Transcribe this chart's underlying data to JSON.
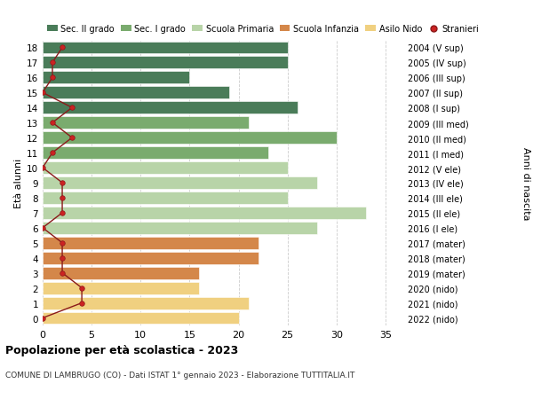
{
  "ages": [
    18,
    17,
    16,
    15,
    14,
    13,
    12,
    11,
    10,
    9,
    8,
    7,
    6,
    5,
    4,
    3,
    2,
    1,
    0
  ],
  "right_labels": [
    "2004 (V sup)",
    "2005 (IV sup)",
    "2006 (III sup)",
    "2007 (II sup)",
    "2008 (I sup)",
    "2009 (III med)",
    "2010 (II med)",
    "2011 (I med)",
    "2012 (V ele)",
    "2013 (IV ele)",
    "2014 (III ele)",
    "2015 (II ele)",
    "2016 (I ele)",
    "2017 (mater)",
    "2018 (mater)",
    "2019 (mater)",
    "2020 (nido)",
    "2021 (nido)",
    "2022 (nido)"
  ],
  "bar_values": [
    25,
    25,
    15,
    19,
    26,
    21,
    30,
    23,
    25,
    28,
    25,
    33,
    28,
    22,
    22,
    16,
    16,
    21,
    20
  ],
  "bar_colors": [
    "#4a7c59",
    "#4a7c59",
    "#4a7c59",
    "#4a7c59",
    "#4a7c59",
    "#7aab6e",
    "#7aab6e",
    "#7aab6e",
    "#b8d4a8",
    "#b8d4a8",
    "#b8d4a8",
    "#b8d4a8",
    "#b8d4a8",
    "#d4874a",
    "#d4874a",
    "#d4874a",
    "#f0d080",
    "#f0d080",
    "#f0d080"
  ],
  "stranieri_values": [
    2,
    1,
    1,
    0,
    3,
    1,
    3,
    1,
    0,
    2,
    2,
    2,
    0,
    2,
    2,
    2,
    4,
    4,
    0
  ],
  "legend_labels": [
    "Sec. II grado",
    "Sec. I grado",
    "Scuola Primaria",
    "Scuola Infanzia",
    "Asilo Nido",
    "Stranieri"
  ],
  "legend_colors": [
    "#4a7c59",
    "#7aab6e",
    "#b8d4a8",
    "#d4874a",
    "#f0d080",
    "#cc2222"
  ],
  "title": "Popolazione per età scolastica - 2023",
  "subtitle": "COMUNE DI LAMBRUGO (CO) - Dati ISTAT 1° gennaio 2023 - Elaborazione TUTTITALIA.IT",
  "ylabel_left": "Anni di nascita",
  "ylabel": "Età alunni",
  "xlim": [
    0,
    37
  ],
  "background_color": "#ffffff",
  "grid_color": "#cccccc"
}
